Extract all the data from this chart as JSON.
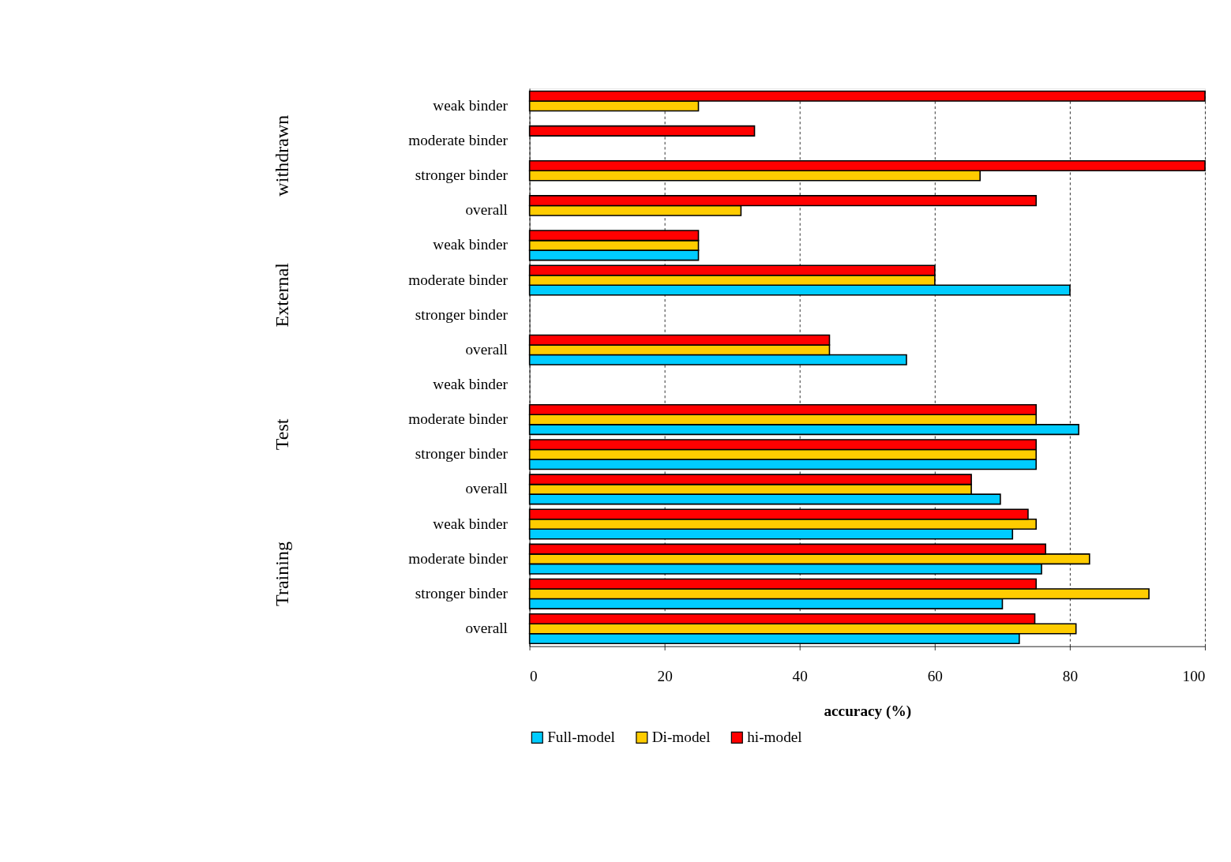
{
  "chart_data": {
    "type": "bar",
    "orientation": "horizontal",
    "xlabel": "accuracy (%)",
    "categories": [
      "weak binder",
      "moderate binder",
      "stronger binder",
      "overall",
      "weak binder",
      "moderate binder",
      "stronger binder",
      "overall",
      "weak binder",
      "moderate binder",
      "stronger binder",
      "overall",
      "weak binder",
      "moderate binder",
      "stronger binder",
      "overall"
    ],
    "annotations": [
      "withdrawn",
      "External",
      "Test",
      "Training"
    ],
    "series": [
      {
        "name": "Full-model",
        "color": "#00ccff",
        "values": [
          null,
          null,
          null,
          null,
          25,
          80,
          null,
          55.8,
          null,
          81.3,
          75,
          69.7,
          71.5,
          75.8,
          70,
          72.5
        ]
      },
      {
        "name": "Di-model",
        "color": "#ffcc00",
        "values": [
          25,
          null,
          66.7,
          31.3,
          25,
          60,
          null,
          44.4,
          null,
          75,
          75,
          65.4,
          75,
          82.9,
          91.7,
          80.9
        ]
      },
      {
        "name": "hi-model",
        "color": "#ff0000",
        "values": [
          100,
          33.3,
          100,
          75,
          25,
          60,
          null,
          44.4,
          null,
          75,
          75,
          65.4,
          73.8,
          76.4,
          75,
          74.8
        ]
      }
    ],
    "xlim": [
      0,
      100
    ],
    "xticks": [
      0,
      20,
      40,
      60,
      80,
      100
    ],
    "grid": "x",
    "legend": "bottom"
  }
}
